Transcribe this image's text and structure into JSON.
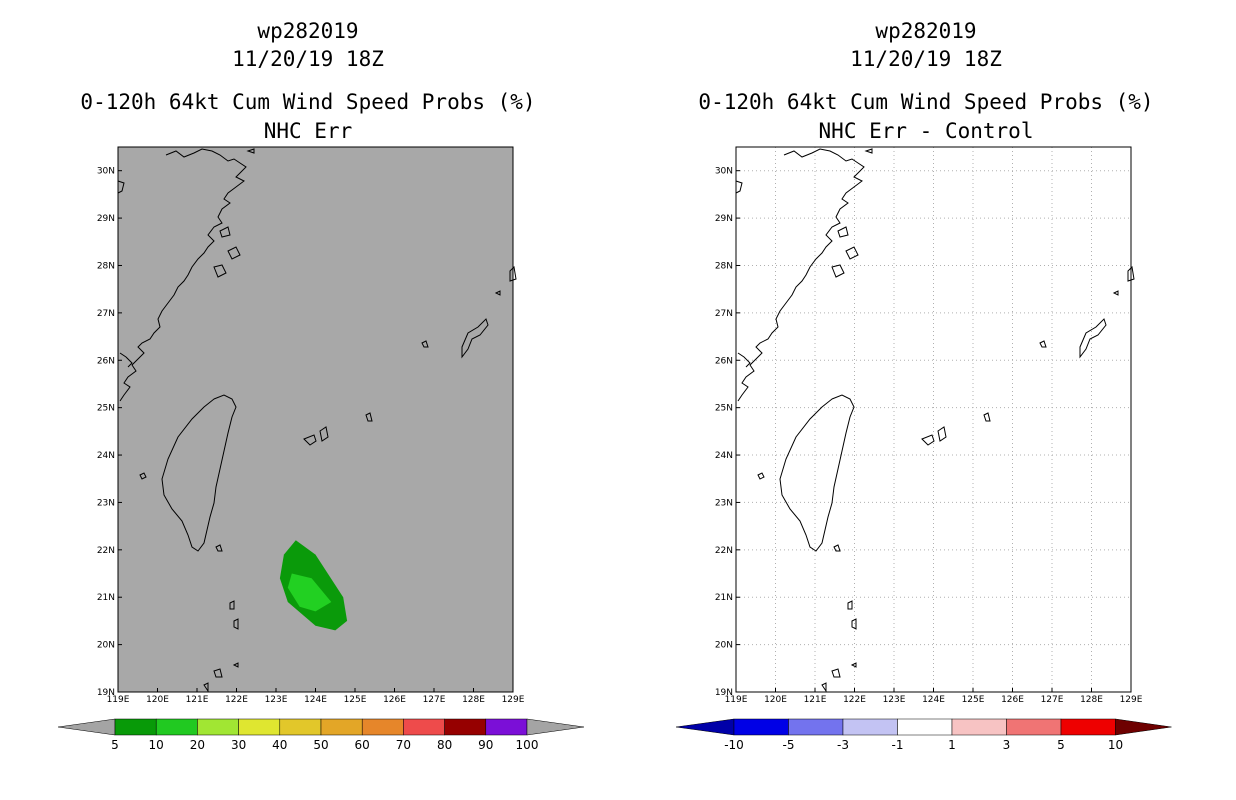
{
  "left": {
    "title_line1": "wp282019",
    "title_line2": "11/20/19 18Z",
    "title_line3": "0-120h 64kt Cum Wind Speed Probs (%)",
    "title_line4": "NHC Err",
    "colorbar": {
      "labels": [
        "5",
        "10",
        "20",
        "30",
        "40",
        "50",
        "60",
        "70",
        "80",
        "90",
        "100"
      ],
      "colors": [
        "#089a08",
        "#21c921",
        "#a1e633",
        "#dfe630",
        "#e2c72a",
        "#e3a627",
        "#e6862a",
        "#ee4b4b",
        "#960000",
        "#7b0fd7"
      ],
      "end_color": "#a4a4a4"
    },
    "background_color": "#a8a8a8",
    "outer_region_color": "#0a9a0a",
    "inner_region_color": "#22d022",
    "outer_region": {
      "lon": [
        123.5,
        124.0,
        124.7,
        124.8,
        124.5,
        124.0,
        123.3,
        123.1,
        123.2
      ],
      "lat": [
        22.2,
        21.9,
        21.0,
        20.5,
        20.3,
        20.4,
        20.9,
        21.4,
        21.9
      ]
    },
    "inner_region": {
      "lon": [
        123.4,
        123.9,
        124.4,
        124.0,
        123.6,
        123.3
      ],
      "lat": [
        21.5,
        21.4,
        20.9,
        20.7,
        20.8,
        21.2
      ]
    }
  },
  "right": {
    "title_line1": "wp282019",
    "title_line2": "11/20/19 18Z",
    "title_line3": "0-120h 64kt Cum Wind Speed Probs (%)",
    "title_line4": "NHC Err - Control",
    "colorbar": {
      "labels": [
        "-10",
        "-5",
        "-3",
        "-1",
        "1",
        "3",
        "5",
        "10"
      ],
      "colors": [
        "#0000e6",
        "#7373ee",
        "#c3c3f3",
        "#ffffff",
        "#f7c3c3",
        "#f07474",
        "#ee0000"
      ],
      "start_color": "#0000a8",
      "end_color": "#6e0000"
    }
  },
  "map": {
    "lon_ticks": [
      "119E",
      "120E",
      "121E",
      "122E",
      "123E",
      "124E",
      "125E",
      "126E",
      "127E",
      "128E",
      "129E"
    ],
    "lat_ticks": [
      "19N",
      "20N",
      "21N",
      "22N",
      "23N",
      "24N",
      "25N",
      "26N",
      "27N",
      "28N",
      "29N",
      "30N"
    ],
    "lon_range": [
      119,
      129
    ],
    "lat_range": [
      19,
      30.5
    ]
  }
}
